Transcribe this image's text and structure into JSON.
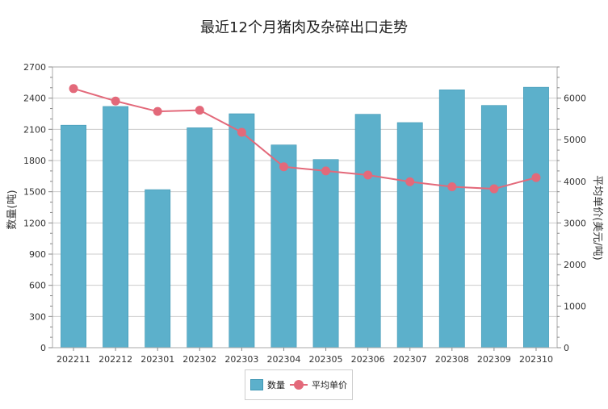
{
  "chart_data": {
    "type": "bar",
    "title": "最近12个月猪肉及杂碎出口走势",
    "categories": [
      "202211",
      "202212",
      "202301",
      "202302",
      "202303",
      "202304",
      "202305",
      "202306",
      "202307",
      "202308",
      "202309",
      "202310"
    ],
    "series": [
      {
        "name": "数量",
        "type": "bar",
        "axis": "left",
        "values": [
          2140,
          2320,
          1520,
          2115,
          2250,
          1950,
          1810,
          2245,
          2165,
          2480,
          2330,
          2505
        ]
      },
      {
        "name": "平均单价",
        "type": "line",
        "axis": "right",
        "values": [
          6230,
          5930,
          5680,
          5710,
          5180,
          4350,
          4250,
          4150,
          3990,
          3870,
          3820,
          4090
        ]
      }
    ],
    "ylabel": "数量(吨)",
    "y2label": "平均单价(美元/吨)",
    "ylim": [
      0,
      2700
    ],
    "y2lim": [
      0,
      6750
    ],
    "yticks": [
      0,
      300,
      600,
      900,
      1200,
      1500,
      1800,
      2100,
      2400,
      2700
    ],
    "y2ticks": [
      0,
      1000,
      2000,
      3000,
      4000,
      5000,
      6000
    ],
    "grid": true,
    "legend_position": "bottom",
    "colors": {
      "bar": "#5cb0cb",
      "bar_border": "#3f97b4",
      "line": "#e3697a",
      "grid": "#cccccc"
    }
  }
}
